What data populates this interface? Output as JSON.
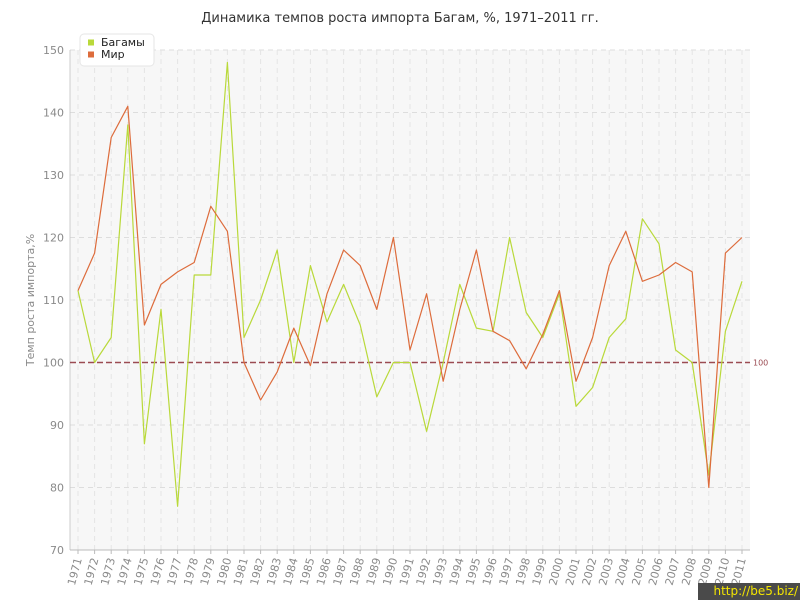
{
  "chart_data": {
    "type": "line",
    "title": "Динамика темпов роста импорта Багам, %, 1971–2011 гг.",
    "xlabel": "",
    "ylabel": "Темп роста импорта,%",
    "ylim": [
      70,
      150
    ],
    "yticks": [
      70,
      80,
      90,
      100,
      110,
      120,
      130,
      140,
      150
    ],
    "grid": true,
    "legend_position": "top-left",
    "reference_line": {
      "value": 100,
      "label": "100",
      "color": "#9b4b52"
    },
    "x": [
      "1971",
      "1972",
      "1973",
      "1974",
      "1975",
      "1976",
      "1977",
      "1978",
      "1979",
      "1980",
      "1981",
      "1982",
      "1983",
      "1984",
      "1985",
      "1986",
      "1987",
      "1988",
      "1989",
      "1990",
      "1991",
      "1992",
      "1993",
      "1994",
      "1995",
      "1996",
      "1997",
      "1998",
      "1999",
      "2000",
      "2001",
      "2002",
      "2003",
      "2004",
      "2005",
      "2006",
      "2007",
      "2008",
      "2009",
      "2010",
      "2011"
    ],
    "series": [
      {
        "name": "Багамы",
        "color": "#b9d93a",
        "values": [
          111.5,
          100.0,
          104.0,
          138.0,
          87.0,
          108.5,
          77.0,
          114.0,
          114.0,
          148.0,
          104.0,
          110.0,
          118.0,
          100.0,
          115.5,
          106.5,
          112.5,
          106.0,
          94.5,
          100.0,
          100.0,
          89.0,
          100.0,
          112.5,
          105.5,
          105.0,
          120.0,
          108.0,
          104.0,
          111.0,
          93.0,
          96.0,
          104.0,
          107.0,
          123.0,
          119.0,
          102.0,
          100.0,
          82.0,
          105.0,
          113.0
        ]
      },
      {
        "name": "Мир",
        "color": "#dd6c3c",
        "values": [
          111.5,
          117.5,
          136.0,
          141.0,
          106.0,
          112.5,
          114.5,
          116.0,
          125.0,
          121.0,
          100.0,
          94.0,
          98.5,
          105.5,
          99.5,
          111.0,
          118.0,
          115.5,
          108.5,
          120.0,
          102.0,
          111.0,
          97.0,
          108.5,
          118.0,
          105.0,
          103.5,
          99.0,
          104.5,
          111.5,
          97.0,
          104.0,
          115.5,
          121.0,
          113.0,
          114.0,
          116.0,
          114.5,
          80.0,
          117.5,
          120.0
        ]
      }
    ]
  },
  "watermark": "http://be5.biz/"
}
